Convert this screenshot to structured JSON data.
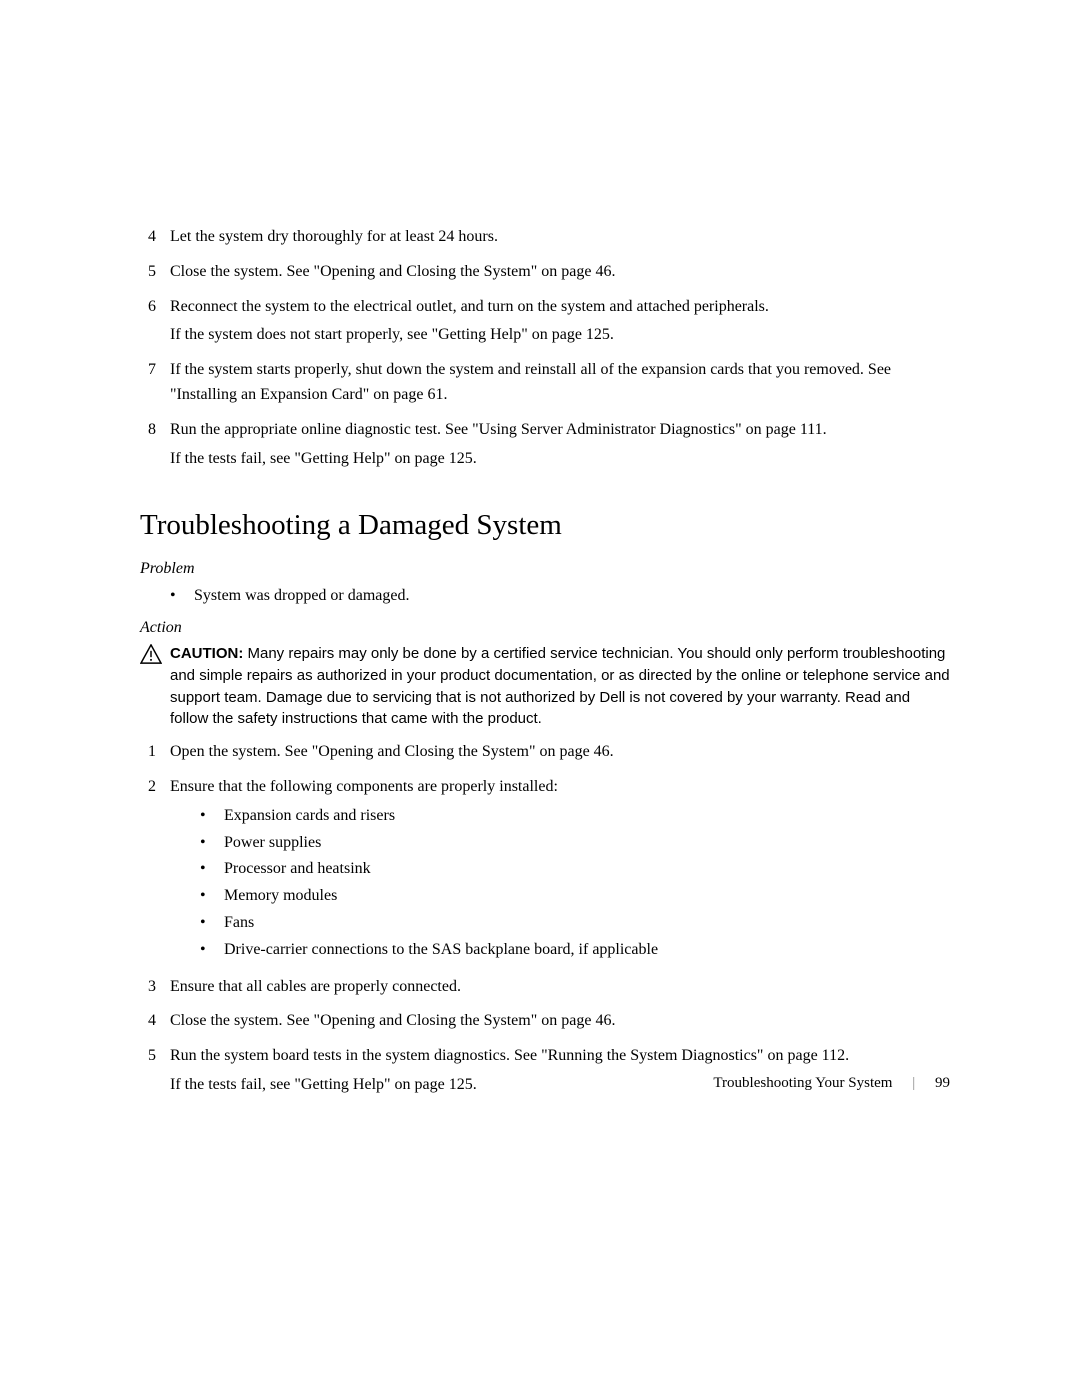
{
  "topList": [
    {
      "num": "4",
      "paras": [
        "Let the system dry thoroughly for at least 24 hours."
      ]
    },
    {
      "num": "5",
      "paras": [
        "Close the system. See \"Opening and Closing the System\" on page 46."
      ]
    },
    {
      "num": "6",
      "paras": [
        "Reconnect the system to the electrical outlet, and turn on the system and attached peripherals.",
        "If the system does not start properly, see \"Getting Help\" on page 125."
      ]
    },
    {
      "num": "7",
      "paras": [
        "If the system starts properly, shut down the system and reinstall all of the expansion cards that you removed. See \"Installing an Expansion Card\" on page 61."
      ]
    },
    {
      "num": "8",
      "paras": [
        "Run the appropriate online diagnostic test. See \"Using Server Administrator Diagnostics\" on page 111.",
        "If the tests fail, see \"Getting Help\" on page 125."
      ]
    }
  ],
  "heading": "Troubleshooting a Damaged System",
  "problem": {
    "label": "Problem",
    "items": [
      "System was dropped or damaged."
    ]
  },
  "action": {
    "label": "Action",
    "cautionLabel": "CAUTION:",
    "cautionText": " Many repairs may only be done by a certified service technician. You should only perform troubleshooting and simple repairs as authorized in your product documentation, or as directed by the online or telephone service and support team. Damage due to servicing that is not authorized by Dell is not covered by your warranty. Read and follow the safety instructions that came with the product.",
    "steps": [
      {
        "num": "1",
        "paras": [
          "Open the system. See \"Opening and Closing the System\" on page 46."
        ]
      },
      {
        "num": "2",
        "paras": [
          "Ensure that the following components are properly installed:"
        ],
        "sub": [
          "Expansion cards and risers",
          "Power supplies",
          "Processor and heatsink",
          "Memory modules",
          "Fans",
          "Drive-carrier connections to the SAS backplane board, if applicable"
        ]
      },
      {
        "num": "3",
        "paras": [
          "Ensure that all cables are properly connected."
        ]
      },
      {
        "num": "4",
        "paras": [
          "Close the system. See \"Opening and Closing the System\" on page 46."
        ]
      },
      {
        "num": "5",
        "paras": [
          "Run the system board tests in the system diagnostics. See \"Running the System Diagnostics\" on page 112.",
          "If the tests fail, see \"Getting Help\" on page 125."
        ]
      }
    ]
  },
  "footer": {
    "section": "Troubleshooting Your System",
    "page": "99"
  }
}
